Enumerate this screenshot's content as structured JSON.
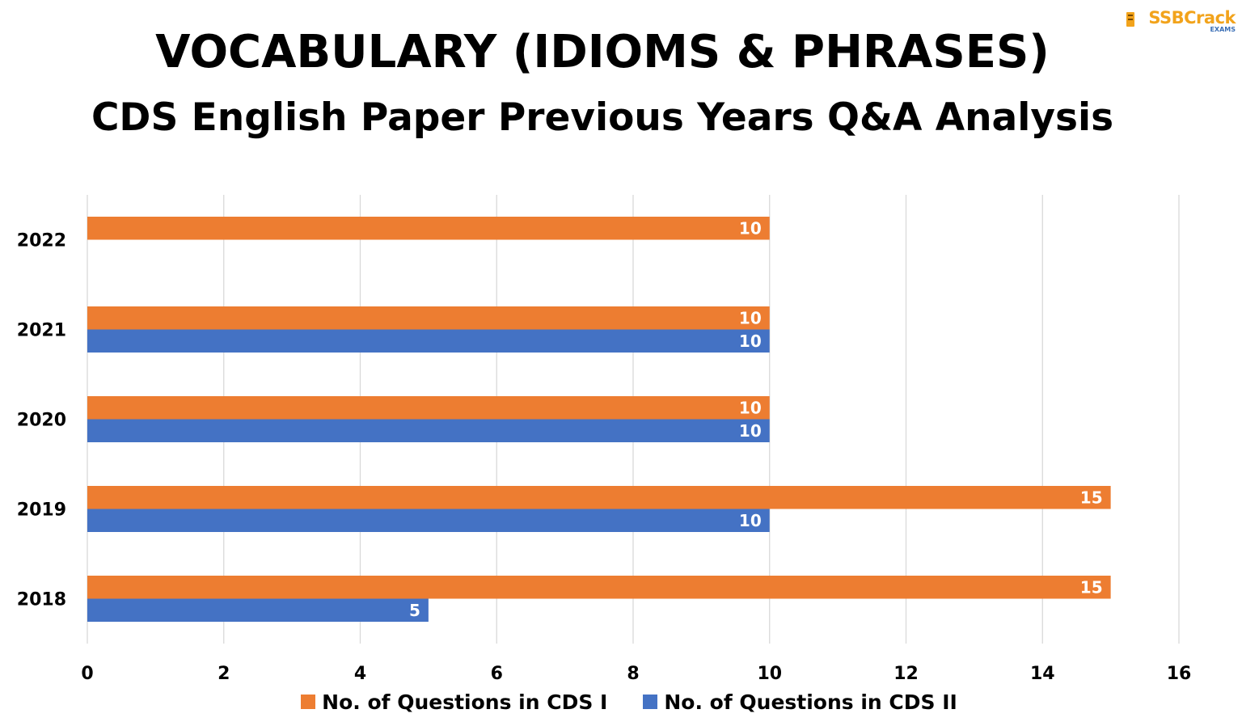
{
  "title": "VOCABULARY (IDIOMS & PHRASES)",
  "subtitle": "CDS English Paper Previous Years Q&A Analysis",
  "logo": {
    "name": "SSBCrack",
    "sub": "EXAMS",
    "icon": "book-icon"
  },
  "colors": {
    "cds1": "#ED7D31",
    "cds2": "#4472C4",
    "grid": "#d9d9d9",
    "label": "#ffffff"
  },
  "chart_data": {
    "type": "bar",
    "orientation": "horizontal",
    "categories": [
      "2022",
      "2021",
      "2020",
      "2019",
      "2018"
    ],
    "series": [
      {
        "name": "No. of Questions in CDS I",
        "values": [
          10,
          10,
          10,
          15,
          15
        ]
      },
      {
        "name": "No. of Questions in CDS II",
        "values": [
          null,
          10,
          10,
          10,
          5
        ]
      }
    ],
    "xlim": [
      0,
      16
    ],
    "xticks": [
      0,
      2,
      4,
      6,
      8,
      10,
      12,
      14,
      16
    ],
    "grid": true,
    "data_labels": true,
    "legend_position": "bottom",
    "title": "VOCABULARY (IDIOMS & PHRASES)",
    "subtitle": "CDS English Paper Previous Years Q&A Analysis"
  }
}
